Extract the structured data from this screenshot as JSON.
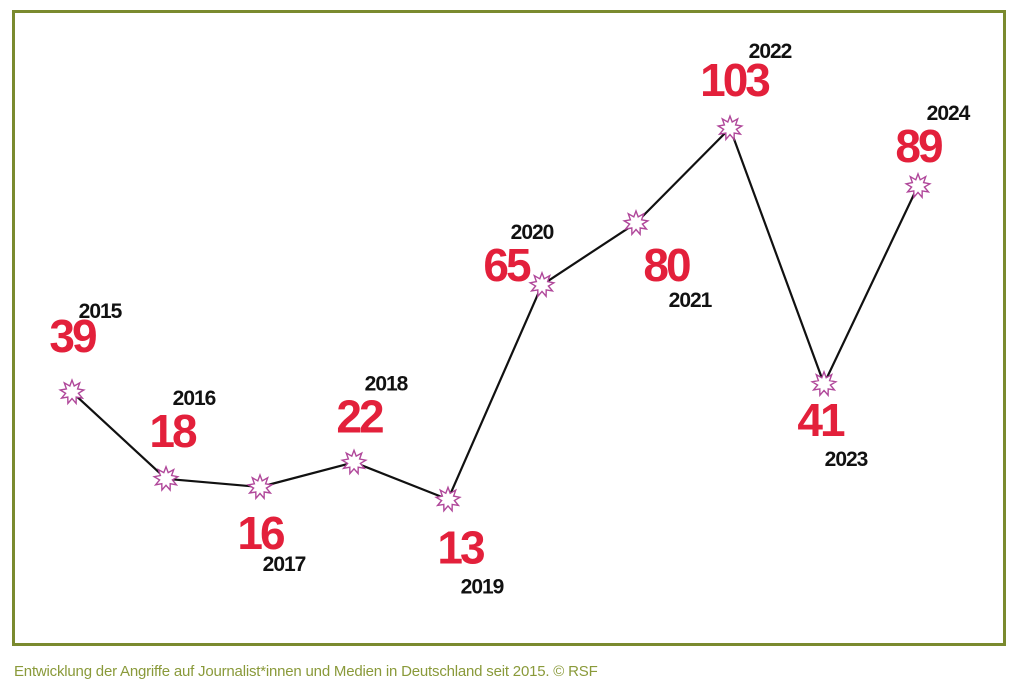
{
  "colors": {
    "frame": "#7a8a2e",
    "value_text": "#e3203b",
    "year_text": "#111111",
    "line": "#111111",
    "marker_stroke": "#b0479a",
    "caption_text": "#8a9a3a"
  },
  "caption": "Entwicklung der Angriffe auf Journalist*innen und Medien in Deutschland seit 2015.  © RSF",
  "chart_data": {
    "type": "line",
    "x": [
      "2015",
      "2016",
      "2017",
      "2018",
      "2019",
      "2020",
      "2021",
      "2022",
      "2023",
      "2024"
    ],
    "values": [
      39,
      18,
      16,
      22,
      13,
      65,
      80,
      103,
      41,
      89
    ],
    "marker": "starburst-icon",
    "grid": false,
    "legend": "none"
  }
}
